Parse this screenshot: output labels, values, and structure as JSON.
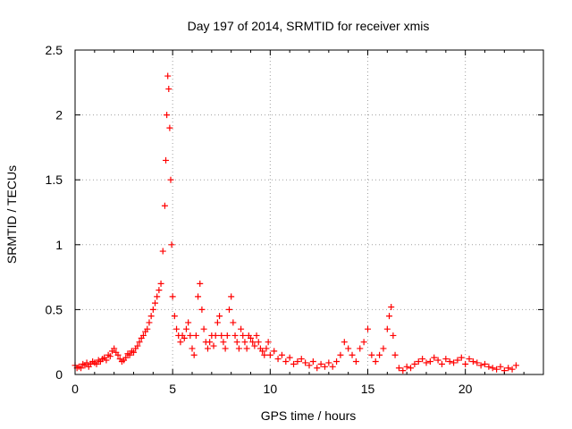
{
  "chart_data": {
    "type": "scatter",
    "title": "Day 197 of 2014, SRMTID for receiver xmis",
    "xlabel": "GPS time / hours",
    "ylabel": "SRMTID / TECUs",
    "xlim": [
      0,
      24
    ],
    "ylim": [
      0,
      2.5
    ],
    "xticks": [
      0,
      5,
      10,
      15,
      20
    ],
    "xtick_labels": [
      "0",
      "5",
      "10",
      "15",
      "20"
    ],
    "yticks": [
      0,
      0.5,
      1,
      1.5,
      2,
      2.5
    ],
    "ytick_labels": [
      "0",
      "0.5",
      "1",
      "1.5",
      "2",
      "2.5"
    ],
    "grid": true,
    "marker": "+",
    "color": "#ff0000",
    "series": [
      {
        "name": "SRMTID",
        "x": [
          0.0,
          0.1,
          0.2,
          0.3,
          0.4,
          0.5,
          0.6,
          0.7,
          0.8,
          0.9,
          1.0,
          1.1,
          1.2,
          1.3,
          1.4,
          1.5,
          1.6,
          1.7,
          1.8,
          1.9,
          2.0,
          2.1,
          2.2,
          2.3,
          2.4,
          2.5,
          2.6,
          2.7,
          2.8,
          2.9,
          3.0,
          3.1,
          3.2,
          3.3,
          3.4,
          3.5,
          3.6,
          3.7,
          3.8,
          3.9,
          4.0,
          4.1,
          4.2,
          4.3,
          4.4,
          4.5,
          4.6,
          4.65,
          4.7,
          4.75,
          4.8,
          4.85,
          4.9,
          4.95,
          5.0,
          5.1,
          5.2,
          5.3,
          5.4,
          5.5,
          5.6,
          5.7,
          5.8,
          5.9,
          6.0,
          6.1,
          6.2,
          6.3,
          6.4,
          6.5,
          6.6,
          6.7,
          6.8,
          6.9,
          7.0,
          7.1,
          7.2,
          7.3,
          7.4,
          7.5,
          7.6,
          7.7,
          7.8,
          7.9,
          8.0,
          8.1,
          8.2,
          8.3,
          8.4,
          8.5,
          8.6,
          8.7,
          8.8,
          8.9,
          9.0,
          9.1,
          9.2,
          9.3,
          9.4,
          9.5,
          9.6,
          9.7,
          9.8,
          9.9,
          10.0,
          10.2,
          10.4,
          10.6,
          10.8,
          11.0,
          11.2,
          11.4,
          11.6,
          11.8,
          12.0,
          12.2,
          12.4,
          12.6,
          12.8,
          13.0,
          13.2,
          13.4,
          13.6,
          13.8,
          14.0,
          14.2,
          14.4,
          14.6,
          14.8,
          15.0,
          15.2,
          15.4,
          15.6,
          15.8,
          16.0,
          16.1,
          16.2,
          16.3,
          16.4,
          16.6,
          16.8,
          17.0,
          17.2,
          17.4,
          17.6,
          17.8,
          18.0,
          18.2,
          18.4,
          18.6,
          18.8,
          19.0,
          19.2,
          19.4,
          19.6,
          19.8,
          20.0,
          20.2,
          20.4,
          20.6,
          20.8,
          21.0,
          21.2,
          21.4,
          21.6,
          21.8,
          22.0,
          22.2,
          22.4,
          22.6
        ],
        "y": [
          0.07,
          0.05,
          0.06,
          0.05,
          0.08,
          0.07,
          0.09,
          0.06,
          0.08,
          0.1,
          0.09,
          0.08,
          0.11,
          0.1,
          0.12,
          0.13,
          0.11,
          0.15,
          0.14,
          0.18,
          0.2,
          0.17,
          0.15,
          0.12,
          0.1,
          0.11,
          0.13,
          0.16,
          0.15,
          0.18,
          0.17,
          0.2,
          0.22,
          0.25,
          0.28,
          0.3,
          0.33,
          0.35,
          0.4,
          0.45,
          0.5,
          0.55,
          0.6,
          0.65,
          0.7,
          0.95,
          1.3,
          1.65,
          2.0,
          2.3,
          2.2,
          1.9,
          1.5,
          1.0,
          0.6,
          0.45,
          0.35,
          0.3,
          0.25,
          0.3,
          0.28,
          0.35,
          0.4,
          0.3,
          0.2,
          0.15,
          0.3,
          0.6,
          0.7,
          0.5,
          0.35,
          0.25,
          0.2,
          0.25,
          0.3,
          0.22,
          0.3,
          0.4,
          0.45,
          0.3,
          0.25,
          0.2,
          0.3,
          0.5,
          0.6,
          0.4,
          0.3,
          0.25,
          0.2,
          0.35,
          0.3,
          0.25,
          0.2,
          0.3,
          0.28,
          0.25,
          0.22,
          0.3,
          0.25,
          0.2,
          0.18,
          0.15,
          0.2,
          0.25,
          0.15,
          0.18,
          0.12,
          0.15,
          0.1,
          0.13,
          0.08,
          0.1,
          0.12,
          0.09,
          0.07,
          0.1,
          0.05,
          0.08,
          0.06,
          0.09,
          0.06,
          0.1,
          0.15,
          0.25,
          0.2,
          0.15,
          0.1,
          0.2,
          0.25,
          0.35,
          0.15,
          0.1,
          0.15,
          0.2,
          0.35,
          0.45,
          0.52,
          0.3,
          0.15,
          0.05,
          0.03,
          0.06,
          0.05,
          0.08,
          0.1,
          0.12,
          0.09,
          0.1,
          0.13,
          0.11,
          0.08,
          0.12,
          0.1,
          0.09,
          0.11,
          0.13,
          0.08,
          0.12,
          0.1,
          0.09,
          0.07,
          0.08,
          0.06,
          0.05,
          0.04,
          0.06,
          0.03,
          0.05,
          0.04,
          0.07
        ]
      }
    ]
  }
}
